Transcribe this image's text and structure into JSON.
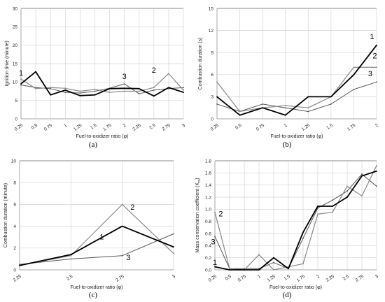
{
  "chart_data": [
    {
      "panel": "(a)",
      "type": "line",
      "ylabel": "Ignition time (minute)",
      "xlabel": "Fuel-to-oxidizer ratio (φ)",
      "ylim": [
        0,
        30
      ],
      "yticks": [
        0,
        5,
        10,
        15,
        20,
        25,
        30
      ],
      "categories": [
        "0.25",
        "0.5",
        "0.75",
        "1",
        "1.25",
        "1.5",
        "1.75",
        "2",
        "2.25",
        "2.5",
        "2.75",
        "3"
      ],
      "series": [
        {
          "name": "1",
          "color": "#000000",
          "width": 1.8,
          "values": [
            9.5,
            12.8,
            6.5,
            7.8,
            6.3,
            6.5,
            8.2,
            8.3,
            8.2,
            6.2,
            8.5,
            7.2
          ]
        },
        {
          "name": "2",
          "color": "#888888",
          "width": 1.2,
          "values": [
            10.8,
            8.2,
            8.5,
            8.3,
            7.5,
            8.0,
            7.2,
            7.5,
            7.5,
            8.5,
            12.3,
            7.8
          ]
        },
        {
          "name": "3",
          "color": "#555555",
          "width": 1.0,
          "values": [
            9.2,
            8.5,
            8.2,
            7.2,
            7.0,
            7.5,
            8.3,
            9.5,
            6.8,
            7.8,
            8.2,
            8.5
          ]
        }
      ],
      "annotations": [
        {
          "text": "1",
          "x": 0.25,
          "y": 11.8
        },
        {
          "text": "3",
          "x": 2.0,
          "y": 10.8
        },
        {
          "text": "2",
          "x": 2.5,
          "y": 12.5
        }
      ],
      "caption": "(a)"
    },
    {
      "panel": "(b)",
      "type": "line",
      "ylabel": "Combustion duration (s)",
      "xlabel": "Fuel-to-oxidizer ratio (φ)",
      "ylim": [
        0,
        15
      ],
      "yticks": [
        0,
        3,
        6,
        9,
        12,
        15
      ],
      "categories": [
        "0.25",
        "0.5",
        "0.75",
        "1",
        "1.25",
        "1.5",
        "1.75",
        "2"
      ],
      "series": [
        {
          "name": "1",
          "color": "#000000",
          "width": 1.8,
          "values": [
            3.0,
            0.5,
            1.5,
            0.5,
            3.0,
            3.0,
            6.0,
            10.0
          ]
        },
        {
          "name": "2",
          "color": "#888888",
          "width": 1.2,
          "values": [
            5.0,
            1.0,
            1.5,
            1.8,
            1.5,
            3.0,
            7.0,
            7.0
          ]
        },
        {
          "name": "3",
          "color": "#555555",
          "width": 1.0,
          "values": [
            2.0,
            1.0,
            2.0,
            1.5,
            1.0,
            2.0,
            4.0,
            5.0
          ]
        }
      ],
      "annotations": [
        {
          "text": "1",
          "x": 1.95,
          "y": 10.8
        },
        {
          "text": "2",
          "x": 1.98,
          "y": 8.2
        },
        {
          "text": "3",
          "x": 1.93,
          "y": 5.8
        }
      ],
      "caption": "(b)"
    },
    {
      "panel": "(c)",
      "type": "line",
      "ylabel": "Combustion duration (minute)",
      "xlabel": "Fuel-to-oxidizer ratio (φ)",
      "ylim": [
        0,
        10
      ],
      "yticks": [
        0,
        2,
        4,
        6,
        8,
        10
      ],
      "categories": [
        "2.25",
        "2.5",
        "2.75",
        "3"
      ],
      "series": [
        {
          "name": "1",
          "color": "#000000",
          "width": 1.8,
          "values": [
            0.4,
            1.4,
            4.0,
            2.1
          ]
        },
        {
          "name": "2",
          "color": "#888888",
          "width": 1.2,
          "values": [
            0.4,
            1.3,
            6.0,
            1.5
          ]
        },
        {
          "name": "3",
          "color": "#555555",
          "width": 1.0,
          "values": [
            0.5,
            1.0,
            1.3,
            3.3
          ]
        }
      ],
      "annotations": [
        {
          "text": "2",
          "x": 2.8,
          "y": 5.5
        },
        {
          "text": "1",
          "x": 2.65,
          "y": 2.8
        },
        {
          "text": "3",
          "x": 2.78,
          "y": 0.9
        }
      ],
      "caption": "(c)"
    },
    {
      "panel": "(d)",
      "type": "line",
      "ylabel": "Mass conservation coefficient (K",
      "ylabel_sub": "m",
      "ylabel_end": ")",
      "xlabel": "Fuel-to-oxidizer ratio (φ)",
      "ylim": [
        0,
        1.8
      ],
      "yticks": [
        "0.0",
        "0.2",
        "0.4",
        "0.6",
        "0.8",
        "1.0",
        "1.2",
        "1.4",
        "1.6",
        "1.8"
      ],
      "categories": [
        "0.25",
        "0.5",
        "0.75",
        "1",
        "1.25",
        "1.5",
        "1.75",
        "2",
        "2.25",
        "2.5",
        "2.75",
        "3"
      ],
      "series": [
        {
          "name": "1",
          "color": "#000000",
          "width": 1.8,
          "values": [
            0.05,
            0.0,
            0.0,
            0.0,
            0.2,
            0.02,
            0.62,
            1.05,
            1.05,
            1.2,
            1.55,
            1.63
          ]
        },
        {
          "name": "2",
          "color": "#888888",
          "width": 1.2,
          "values": [
            0.95,
            0.02,
            0.0,
            0.25,
            0.0,
            0.05,
            0.1,
            0.92,
            0.95,
            1.38,
            1.22,
            1.72
          ]
        },
        {
          "name": "3",
          "color": "#555555",
          "width": 1.0,
          "values": [
            0.55,
            0.02,
            0.02,
            0.02,
            0.12,
            0.02,
            0.52,
            1.02,
            1.15,
            1.3,
            1.58,
            1.38
          ]
        }
      ],
      "annotations": [
        {
          "text": "2",
          "x": 0.35,
          "y": 0.88
        },
        {
          "text": "3",
          "x": 0.22,
          "y": 0.42
        },
        {
          "text": "1",
          "x": 0.25,
          "y": 0.08
        }
      ],
      "caption": "(d)"
    }
  ]
}
